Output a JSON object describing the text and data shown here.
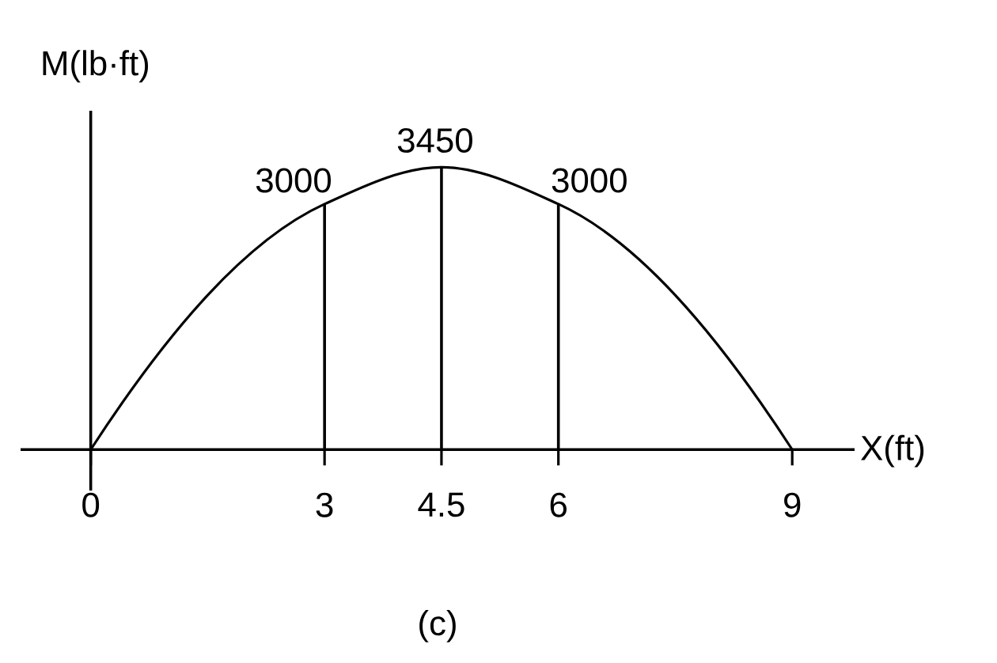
{
  "chart_data": {
    "type": "bar",
    "xlabel": "X(ft)",
    "ylabel": "M(lb·ft)",
    "annotations": [
      "(c)"
    ],
    "xlim": [
      -0.9,
      9.8
    ],
    "xticks": [
      0,
      3,
      4.5,
      6,
      9
    ],
    "tick_labels": "x",
    "marker": "none",
    "line_style": "solid",
    "series": [
      {
        "type": "line",
        "color": "#000000",
        "x": [
          0,
          3,
          4.5,
          6,
          9
        ],
        "values": [
          0,
          3000,
          3450,
          3000,
          0
        ]
      },
      {
        "color": "#000000",
        "x": [
          3,
          4.5,
          6
        ],
        "values": [
          3000,
          3450,
          3000
        ],
        "value_labels": [
          "3000",
          "3450",
          "3000"
        ]
      }
    ]
  }
}
